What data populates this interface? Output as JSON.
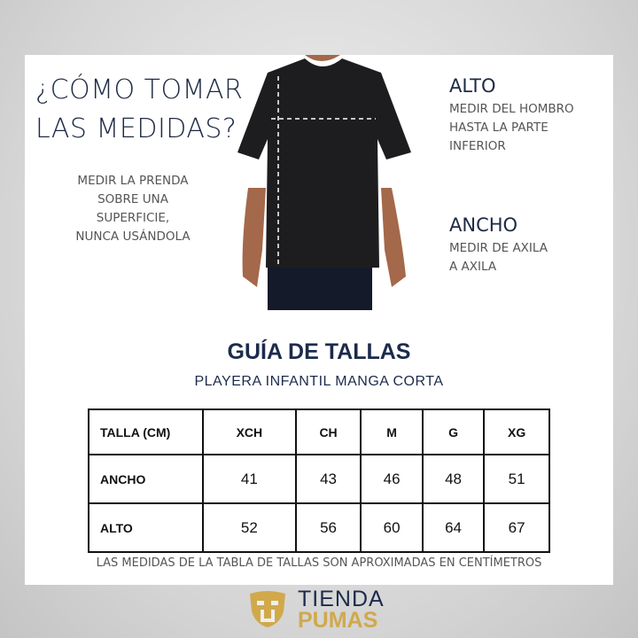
{
  "heading": {
    "line1": "¿CÓMO TOMAR",
    "line2": "LAS MEDIDAS?"
  },
  "note": [
    "MEDIR LA PRENDA",
    "SOBRE UNA",
    "SUPERFICIE,",
    "NUNCA USÁNDOLA"
  ],
  "alto": {
    "title": "ALTO",
    "lines": [
      "MEDIR DEL HOMBRO",
      "HASTA LA PARTE",
      "INFERIOR"
    ]
  },
  "ancho": {
    "title": "ANCHO",
    "lines": [
      "MEDIR DE AXILA",
      "A AXILA"
    ]
  },
  "guide": {
    "title": "GUÍA DE TALLAS",
    "subtitle": "PLAYERA INFANTIL MANGA CORTA"
  },
  "table": {
    "header": [
      "TALLA (CM)",
      "XCH",
      "CH",
      "M",
      "G",
      "XG"
    ],
    "rows": [
      [
        "ANCHO",
        "41",
        "43",
        "46",
        "48",
        "51"
      ],
      [
        "ALTO",
        "52",
        "56",
        "60",
        "64",
        "67"
      ]
    ]
  },
  "footnote": "LAS MEDIDAS DE LA TABLA DE TALLAS SON APROXIMADAS EN CENTÍMETROS",
  "logo": {
    "line1": "TIENDA",
    "line2": "PUMAS",
    "gold": "#d1a94b",
    "navy": "#1c2b4c"
  }
}
